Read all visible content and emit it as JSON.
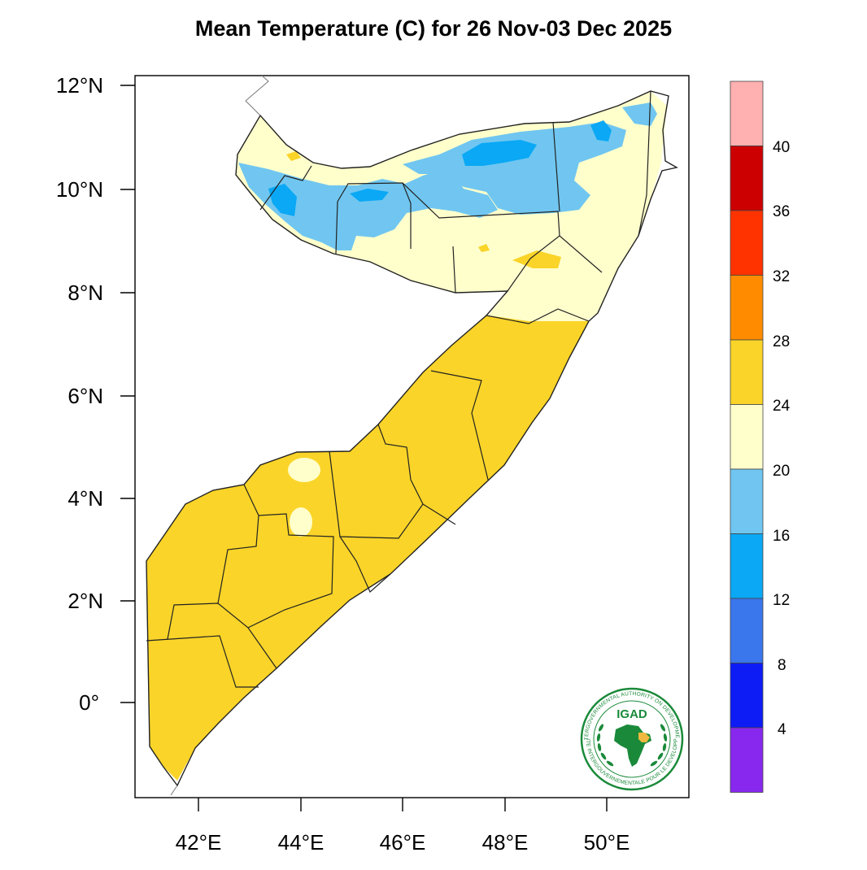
{
  "title": "Mean Temperature (C) for 26 Nov-03 Dec 2025",
  "map": {
    "lat_ticks": [
      "12°N",
      "10°N",
      "8°N",
      "6°N",
      "4°N",
      "2°N",
      "0°"
    ],
    "lon_ticks": [
      "42°E",
      "44°E",
      "46°E",
      "48°E",
      "50°E"
    ],
    "lon_range": [
      40.8,
      51.6
    ],
    "lat_range": [
      -1.8,
      12.2
    ]
  },
  "colorbar": {
    "labels": [
      "40",
      "36",
      "32",
      "28",
      "24",
      "20",
      "16",
      "12",
      "8",
      "4"
    ],
    "colors": [
      "#ffb0b0",
      "#cc0000",
      "#ff3300",
      "#ff8c00",
      "#fad428",
      "#ffffcc",
      "#70c6f0",
      "#0aa8f5",
      "#3a76ec",
      "#0d1cf5",
      "#8828ee"
    ],
    "category_ranges": [
      "above 40",
      "36-40",
      "32-36",
      "28-32",
      "24-28",
      "20-24",
      "16-20",
      "12-16",
      "8-12",
      "4-8",
      "below 4"
    ]
  },
  "logo": {
    "name": "IGAD",
    "ring_text_top": "INTERGOVERNMENTAL AUTHORITY ON DEVELOPMENT",
    "ring_text_bottom": "AUTORITE INTERGOUVERNEMENTALE POUR LE DEVELOPPEMENT"
  }
}
